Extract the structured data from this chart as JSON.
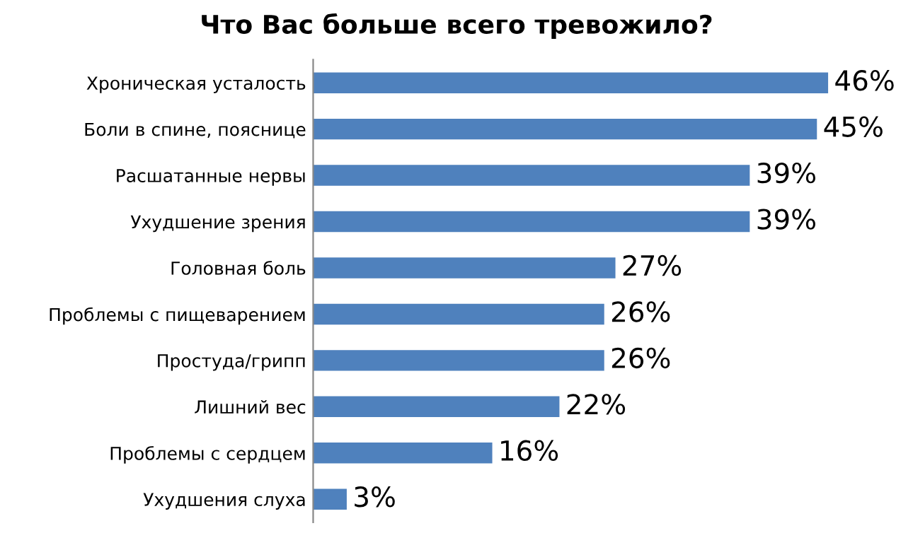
{
  "chart_data": {
    "type": "bar",
    "orientation": "horizontal",
    "title": "Что Вас больше всего тревожило?",
    "categories": [
      "Хроническая усталость",
      "Боли в спине, пояснице",
      "Расшатанные нервы",
      "Ухудшение зрения",
      "Головная боль",
      "Проблемы с пищеварением",
      "Простуда/грипп",
      "Лишний вес",
      "Проблемы с сердцем",
      "Ухудшения слуха"
    ],
    "values": [
      46,
      45,
      39,
      39,
      27,
      26,
      26,
      22,
      16,
      3
    ],
    "value_labels": [
      "46%",
      "45%",
      "39%",
      "39%",
      "27%",
      "26%",
      "26%",
      "22%",
      "16%",
      "3%"
    ],
    "color": "#4f81bd",
    "grid": false,
    "legend": false
  }
}
